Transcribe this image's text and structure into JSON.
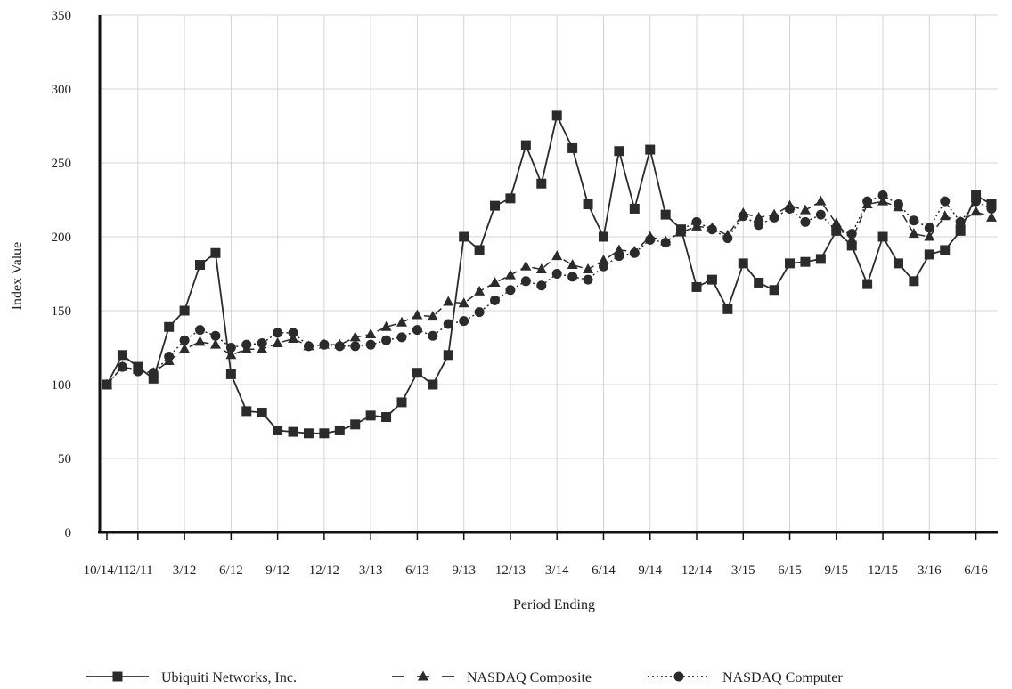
{
  "chart_data": {
    "type": "line",
    "ylabel": "Index Value",
    "xlabel": "Period Ending",
    "ylim": [
      0,
      350
    ],
    "yticks": [
      0,
      50,
      100,
      150,
      200,
      250,
      300,
      350
    ],
    "grid": true,
    "legend_position": "bottom",
    "x_tick_labels": [
      "10/14/11",
      "12/11",
      "3/12",
      "6/12",
      "9/12",
      "12/12",
      "3/13",
      "6/13",
      "9/13",
      "12/13",
      "3/14",
      "6/14",
      "9/14",
      "12/14",
      "3/15",
      "6/15",
      "9/15",
      "12/15",
      "3/16",
      "6/16"
    ],
    "series": [
      {
        "name": "Ubiquiti Networks, Inc.",
        "marker": "square",
        "line_style": "solid",
        "values": [
          100,
          120,
          112,
          104,
          139,
          150,
          181,
          189,
          107,
          82,
          81,
          69,
          68,
          67,
          67,
          69,
          73,
          79,
          78,
          88,
          108,
          100,
          120,
          200,
          191,
          221,
          226,
          262,
          236,
          282,
          260,
          222,
          200,
          258,
          219,
          259,
          215,
          205,
          166,
          171,
          151,
          182,
          169,
          164,
          182,
          183,
          185,
          204,
          194,
          168,
          200,
          182,
          170,
          188,
          191,
          204,
          228,
          222
        ]
      },
      {
        "name": "NASDAQ Composite",
        "marker": "triangle",
        "line_style": "dashed",
        "values": [
          100,
          112,
          110,
          108,
          116,
          124,
          129,
          127,
          120,
          124,
          124,
          128,
          131,
          126,
          127,
          127,
          132,
          134,
          139,
          142,
          147,
          146,
          156,
          155,
          163,
          169,
          174,
          180,
          178,
          187,
          181,
          178,
          184,
          191,
          190,
          200,
          197,
          203,
          207,
          206,
          201,
          216,
          213,
          215,
          221,
          218,
          224,
          209,
          198,
          222,
          224,
          220,
          202,
          200,
          214,
          210,
          217,
          213
        ]
      },
      {
        "name": "NASDAQ Computer",
        "marker": "circle",
        "line_style": "dotted",
        "values": [
          100,
          112,
          109,
          108,
          119,
          130,
          137,
          133,
          125,
          127,
          128,
          135,
          135,
          126,
          127,
          126,
          126,
          127,
          130,
          132,
          137,
          133,
          141,
          143,
          149,
          157,
          164,
          170,
          167,
          175,
          173,
          171,
          180,
          187,
          189,
          198,
          196,
          205,
          210,
          205,
          199,
          214,
          208,
          213,
          219,
          210,
          215,
          204,
          202,
          224,
          228,
          222,
          211,
          206,
          224,
          210,
          224,
          219
        ]
      }
    ]
  }
}
